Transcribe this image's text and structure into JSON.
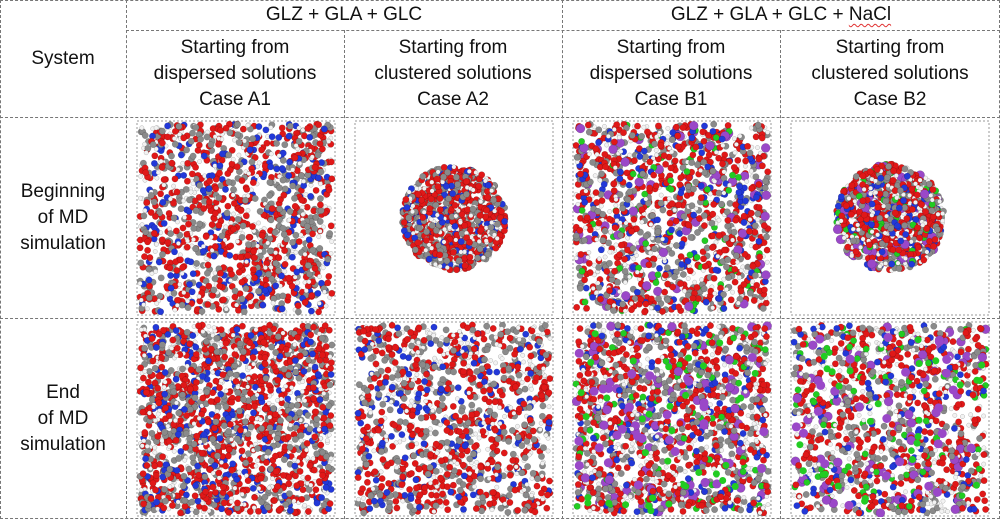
{
  "header": {
    "system_label": "System",
    "group_a": "GLZ + GLA + GLC",
    "group_b_prefix": "GLZ + GLA + GLC + ",
    "group_b_salt": "NaCl",
    "columns": [
      {
        "line1": "Starting from",
        "line2": "dispersed solutions",
        "line3": "Case A1"
      },
      {
        "line1": "Starting from",
        "line2": "clustered solutions",
        "line3": "Case A2"
      },
      {
        "line1": "Starting from",
        "line2": "dispersed solutions",
        "line3": "Case B1"
      },
      {
        "line1": "Starting from",
        "line2": "clustered solutions",
        "line3": "Case B2"
      }
    ]
  },
  "rows": [
    {
      "line1": "Beginning",
      "line2": "of MD",
      "line3": "simulation"
    },
    {
      "line1": "End",
      "line2": "of MD",
      "line3": "simulation"
    }
  ],
  "atom_colors": {
    "oxygen": "#e01818",
    "hydrogen": "#f2f2f2",
    "carbon": "#8a8a8a",
    "nitrogen": "#2238d8",
    "chloride": "#22cc22",
    "sodium": "#9a48c8"
  }
}
